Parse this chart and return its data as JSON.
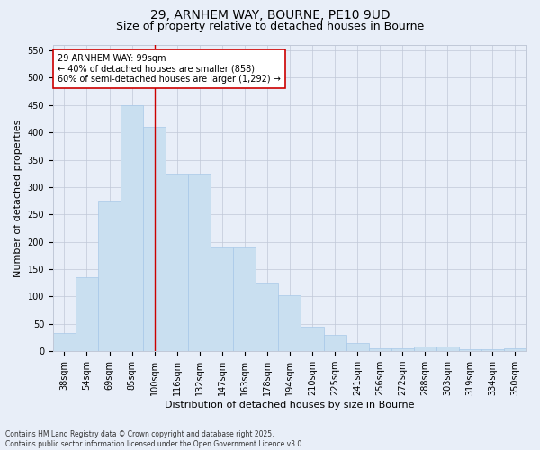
{
  "title1": "29, ARNHEM WAY, BOURNE, PE10 9UD",
  "title2": "Size of property relative to detached houses in Bourne",
  "xlabel": "Distribution of detached houses by size in Bourne",
  "ylabel": "Number of detached properties",
  "categories": [
    "38sqm",
    "54sqm",
    "69sqm",
    "85sqm",
    "100sqm",
    "116sqm",
    "132sqm",
    "147sqm",
    "163sqm",
    "178sqm",
    "194sqm",
    "210sqm",
    "225sqm",
    "241sqm",
    "256sqm",
    "272sqm",
    "288sqm",
    "303sqm",
    "319sqm",
    "334sqm",
    "350sqm"
  ],
  "values": [
    33,
    135,
    275,
    450,
    410,
    325,
    325,
    190,
    190,
    125,
    103,
    45,
    30,
    16,
    6,
    5,
    9,
    9,
    4,
    4,
    5
  ],
  "bar_color": "#c9dff0",
  "bar_edge_color": "#a8c8e8",
  "vline_x": 4,
  "vline_color": "#cc0000",
  "annotation_text": "29 ARNHEM WAY: 99sqm\n← 40% of detached houses are smaller (858)\n60% of semi-detached houses are larger (1,292) →",
  "annotation_box_color": "#ffffff",
  "annotation_box_edge": "#cc0000",
  "ylim": [
    0,
    560
  ],
  "yticks": [
    0,
    50,
    100,
    150,
    200,
    250,
    300,
    350,
    400,
    450,
    500,
    550
  ],
  "background_color": "#e8eef8",
  "grid_color": "#c0c8d8",
  "footer_line1": "Contains HM Land Registry data © Crown copyright and database right 2025.",
  "footer_line2": "Contains public sector information licensed under the Open Government Licence v3.0.",
  "title_fontsize": 10,
  "subtitle_fontsize": 9,
  "tick_fontsize": 7,
  "label_fontsize": 8,
  "footer_fontsize": 5.5
}
